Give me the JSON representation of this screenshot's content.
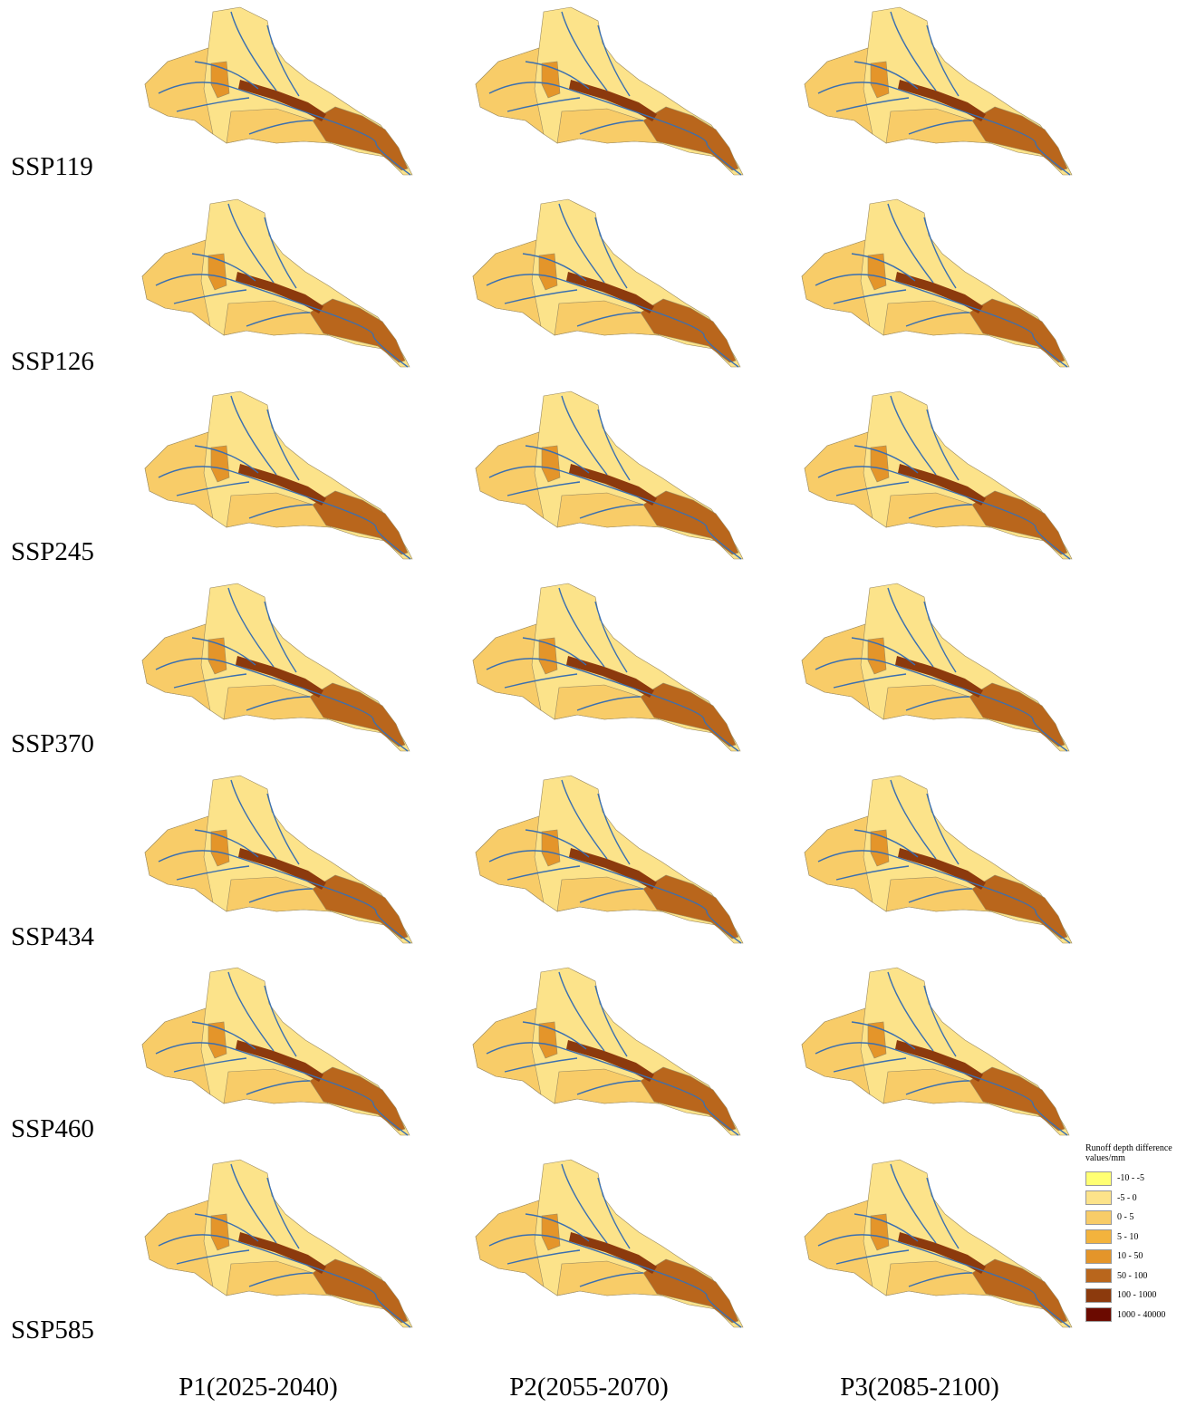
{
  "rows": [
    "SSP119",
    "SSP126",
    "SSP245",
    "SSP370",
    "SSP434",
    "SSP460",
    "SSP585"
  ],
  "columns": [
    "P1(2025-2040)",
    "P2(2055-2070)",
    "P3(2085-2100)"
  ],
  "legend": {
    "title": "Runoff depth difference values/mm",
    "items": [
      {
        "label": "-10 - -5",
        "color": "#ffff73"
      },
      {
        "label": "-5 - 0",
        "color": "#fce38a"
      },
      {
        "label": "0 - 5",
        "color": "#f8cc68"
      },
      {
        "label": "5 - 10",
        "color": "#f3b33d"
      },
      {
        "label": "10 - 50",
        "color": "#e4952a"
      },
      {
        "label": "50 - 100",
        "color": "#b9661c"
      },
      {
        "label": "100 - 1000",
        "color": "#8c3a0d"
      },
      {
        "label": "1000 - 40000",
        "color": "#6b0a00"
      }
    ]
  }
}
